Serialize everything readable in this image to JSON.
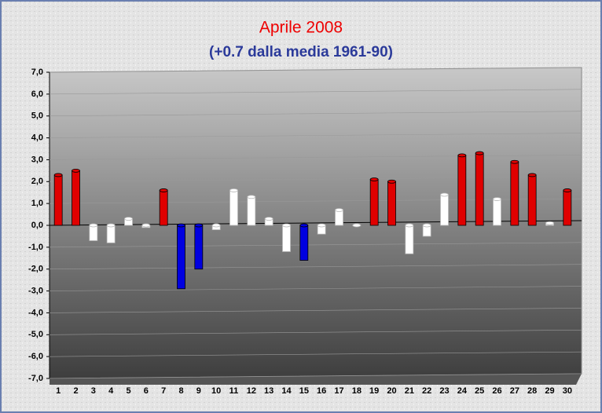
{
  "chart_data": {
    "type": "bar",
    "title": "Aprile 2008",
    "subtitle": "(+0.7 dalla media 1961-90)",
    "categories": [
      "1",
      "2",
      "3",
      "4",
      "5",
      "6",
      "7",
      "8",
      "9",
      "10",
      "11",
      "12",
      "13",
      "14",
      "15",
      "16",
      "17",
      "18",
      "19",
      "20",
      "21",
      "22",
      "23",
      "24",
      "25",
      "26",
      "27",
      "28",
      "29",
      "30"
    ],
    "values": [
      2.3,
      2.5,
      -0.7,
      -0.8,
      0.3,
      -0.1,
      1.6,
      -2.9,
      -2.0,
      -0.2,
      1.6,
      1.3,
      0.3,
      -1.2,
      -1.6,
      -0.4,
      0.7,
      0.0,
      2.1,
      2.0,
      -1.3,
      -0.5,
      1.4,
      3.2,
      3.3,
      1.2,
      2.9,
      2.3,
      0.1,
      1.6
    ],
    "colors": [
      "#e00000",
      "#e00000",
      "#ffffff",
      "#ffffff",
      "#ffffff",
      "#ffffff",
      "#e00000",
      "#0000e0",
      "#0000e0",
      "#ffffff",
      "#ffffff",
      "#ffffff",
      "#ffffff",
      "#ffffff",
      "#0000e0",
      "#ffffff",
      "#ffffff",
      "#ffffff",
      "#e00000",
      "#e00000",
      "#ffffff",
      "#ffffff",
      "#ffffff",
      "#e00000",
      "#e00000",
      "#ffffff",
      "#e00000",
      "#e00000",
      "#ffffff",
      "#e00000"
    ],
    "ylim": [
      -7,
      7
    ],
    "yticks": [
      {
        "value": -7,
        "label": "-7,0"
      },
      {
        "value": -6,
        "label": "-6,0"
      },
      {
        "value": -5,
        "label": "-5,0"
      },
      {
        "value": -4,
        "label": "-4,0"
      },
      {
        "value": -3,
        "label": "-3,0"
      },
      {
        "value": -2,
        "label": "-2,0"
      },
      {
        "value": -1,
        "label": "-1,0"
      },
      {
        "value": 0,
        "label": "0,0"
      },
      {
        "value": 1,
        "label": "1,0"
      },
      {
        "value": 2,
        "label": "2,0"
      },
      {
        "value": 3,
        "label": "3,0"
      },
      {
        "value": 4,
        "label": "4,0"
      },
      {
        "value": 5,
        "label": "5,0"
      },
      {
        "value": 6,
        "label": "6,0"
      },
      {
        "value": 7,
        "label": "7,0"
      }
    ],
    "grid": true
  }
}
